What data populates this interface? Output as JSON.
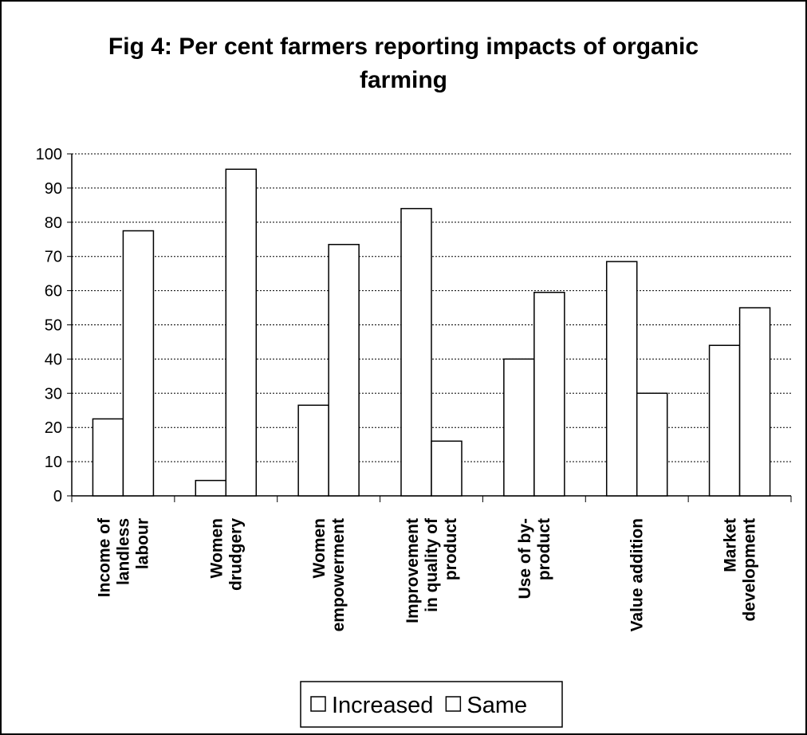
{
  "chart_data": {
    "type": "bar",
    "title": "Fig 4: Per cent farmers reporting impacts of organic farming",
    "categories": [
      "Income of\nlandless\nlabour",
      "Women\ndrudgery",
      "Women\nempowerment",
      "Improvement\nin quality of\nproduct",
      "Use of by-\nproduct",
      "Value addition",
      "Market\ndevelopment"
    ],
    "series": [
      {
        "name": "Increased",
        "color": "#ffffff",
        "values": [
          22.5,
          4.5,
          26.5,
          84,
          40,
          68.5,
          44
        ]
      },
      {
        "name": "Same",
        "color": "#ffffff",
        "values": [
          77.5,
          95.5,
          73.5,
          16,
          59.5,
          30,
          55
        ]
      }
    ],
    "ylim": [
      0,
      100
    ],
    "yticks": [
      0,
      10,
      20,
      30,
      40,
      50,
      60,
      70,
      80,
      90,
      100
    ],
    "grid": true,
    "legend": "bottom"
  }
}
